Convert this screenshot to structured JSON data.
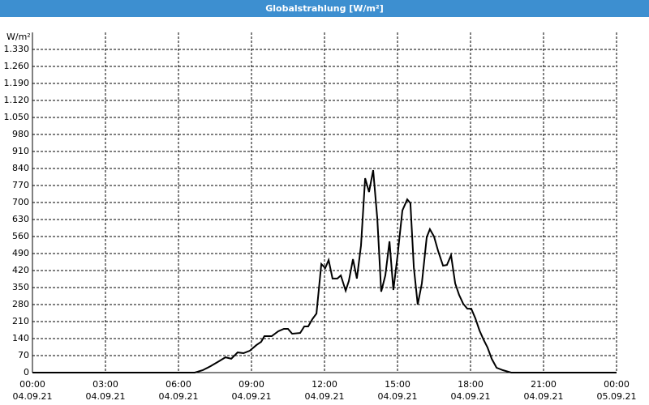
{
  "chart_data": {
    "type": "line",
    "title": "Globalstrahlung [W/m²]",
    "y_label": "W/m²",
    "x": [
      0,
      6.67,
      7.0,
      7.33,
      7.67,
      7.93,
      8.17,
      8.43,
      8.67,
      8.93,
      9.2,
      9.4,
      9.53,
      9.83,
      10.1,
      10.33,
      10.5,
      10.67,
      11.0,
      11.17,
      11.33,
      11.5,
      11.67,
      11.87,
      12.03,
      12.17,
      12.33,
      12.53,
      12.67,
      12.87,
      13.0,
      13.17,
      13.33,
      13.5,
      13.67,
      13.83,
      14.0,
      14.17,
      14.33,
      14.5,
      14.67,
      14.83,
      15.0,
      15.2,
      15.4,
      15.53,
      15.67,
      15.83,
      16.0,
      16.2,
      16.33,
      16.5,
      16.67,
      16.87,
      17.03,
      17.2,
      17.37,
      17.53,
      17.7,
      17.87,
      18.03,
      18.2,
      18.37,
      18.53,
      18.7,
      18.87,
      19.07,
      19.33,
      19.67,
      24
    ],
    "series": [
      {
        "name": "Globalstrahlung",
        "color": "#000000",
        "values": [
          0,
          0,
          10,
          27,
          47,
          63,
          57,
          83,
          80,
          90,
          113,
          127,
          150,
          150,
          170,
          180,
          180,
          160,
          163,
          190,
          190,
          220,
          243,
          447,
          430,
          463,
          387,
          387,
          400,
          337,
          377,
          467,
          387,
          523,
          800,
          743,
          833,
          633,
          333,
          400,
          540,
          340,
          480,
          667,
          713,
          697,
          433,
          280,
          367,
          557,
          590,
          560,
          500,
          440,
          443,
          483,
          367,
          320,
          283,
          263,
          263,
          223,
          173,
          137,
          103,
          57,
          20,
          10,
          0,
          0
        ]
      }
    ],
    "xlim": [
      0,
      24
    ],
    "xticks": [
      {
        "value": 0,
        "label": "00:00",
        "date": "04.09.21"
      },
      {
        "value": 3,
        "label": "03:00",
        "date": "04.09.21"
      },
      {
        "value": 6,
        "label": "06:00",
        "date": "04.09.21"
      },
      {
        "value": 9,
        "label": "09:00",
        "date": "04.09.21"
      },
      {
        "value": 12,
        "label": "12:00",
        "date": "04.09.21"
      },
      {
        "value": 15,
        "label": "15:00",
        "date": "04.09.21"
      },
      {
        "value": 18,
        "label": "18:00",
        "date": "04.09.21"
      },
      {
        "value": 21,
        "label": "21:00",
        "date": "04.09.21"
      },
      {
        "value": 24,
        "label": "00:00",
        "date": "05.09.21"
      }
    ],
    "ylim": [
      0,
      1330
    ],
    "yticks": [
      0,
      70,
      140,
      210,
      280,
      350,
      420,
      490,
      560,
      630,
      700,
      770,
      840,
      910,
      980,
      {
        "value": 1050,
        "label": "1.050"
      },
      {
        "value": 1120,
        "label": "1.120"
      },
      {
        "value": 1190,
        "label": "1.190"
      },
      {
        "value": 1260,
        "label": "1.260"
      },
      {
        "value": 1330,
        "label": "1.330"
      }
    ],
    "grid": true
  }
}
